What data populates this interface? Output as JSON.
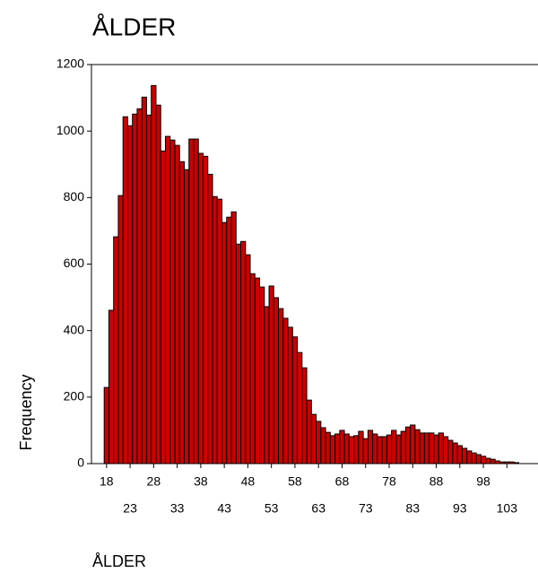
{
  "chart_data": {
    "type": "histogram",
    "title": "ÅLDER",
    "xlabel": "ÅLDER",
    "ylabel": "Frequency",
    "color": "#cc0000",
    "bins": [
      17.5,
      18.5,
      19.5,
      20.5,
      21.5,
      22.5,
      23.5,
      24.5,
      25.5,
      26.5,
      27.5,
      28.5,
      29.5,
      30.5,
      31.5,
      32.5,
      33.5,
      34.5,
      35.5,
      36.5,
      37.5,
      38.5,
      39.5,
      40.5,
      41.5,
      42.5,
      43.5,
      44.5,
      45.5,
      46.5,
      47.5,
      48.5,
      49.5,
      50.5,
      51.5,
      52.5,
      53.5,
      54.5,
      55.5,
      56.5,
      57.5,
      58.5,
      59.5,
      60.5,
      61.5,
      62.5,
      63.5,
      64.5,
      65.5,
      66.5,
      67.5,
      68.5,
      69.5,
      70.5,
      71.5,
      72.5,
      73.5,
      74.5,
      75.5,
      76.5,
      77.5,
      78.5,
      79.5,
      80.5,
      81.5,
      82.5,
      83.5,
      84.5,
      85.5,
      86.5,
      87.5,
      88.5,
      89.5,
      90.5,
      91.5,
      92.5,
      93.5,
      94.5,
      95.5,
      96.5,
      97.5,
      98.5,
      99.5,
      100.5,
      101.5,
      102.5,
      103.5,
      104.5,
      105.5
    ],
    "values": [
      229,
      461,
      682,
      806,
      1043,
      1016,
      1051,
      1067,
      1102,
      1048,
      1137,
      1078,
      940,
      984,
      973,
      957,
      908,
      884,
      976,
      976,
      933,
      924,
      870,
      803,
      795,
      725,
      741,
      757,
      660,
      668,
      628,
      571,
      558,
      531,
      472,
      534,
      499,
      466,
      437,
      410,
      381,
      334,
      288,
      191,
      148,
      127,
      108,
      94,
      84,
      89,
      100,
      89,
      81,
      84,
      97,
      75,
      100,
      89,
      81,
      81,
      86,
      100,
      86,
      97,
      110,
      116,
      102,
      92,
      92,
      92,
      86,
      92,
      81,
      70,
      62,
      54,
      46,
      38,
      32,
      27,
      22,
      16,
      13,
      8,
      5,
      5,
      5,
      3
    ],
    "xlim": [
      14.8,
      109.6
    ],
    "xticks": [
      18,
      23,
      28,
      33,
      38,
      43,
      48,
      53,
      58,
      63,
      68,
      73,
      78,
      83,
      88,
      93,
      98,
      103
    ],
    "ylim": [
      0,
      1200
    ],
    "yticks": [
      0,
      200,
      400,
      600,
      800,
      1000,
      1200
    ]
  }
}
